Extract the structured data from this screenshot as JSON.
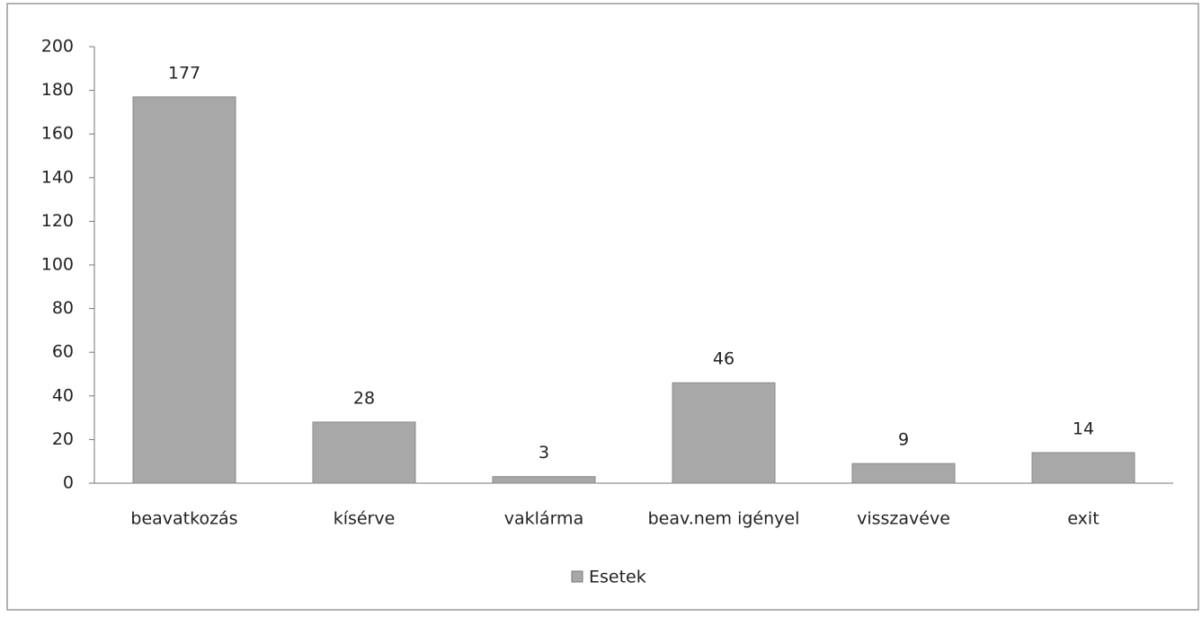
{
  "chart_data": {
    "type": "bar",
    "categories": [
      "beavatkozás",
      "kísérve",
      "vaklárma",
      "beav.nem igényel",
      "visszavéve",
      "exit"
    ],
    "series": [
      {
        "name": "Esetek",
        "color": "#a8a8a8",
        "values": [
          177,
          28,
          3,
          46,
          9,
          14
        ]
      }
    ],
    "ylim": [
      0,
      200
    ],
    "yticks": [
      0,
      20,
      40,
      60,
      80,
      100,
      120,
      140,
      160,
      180,
      200
    ],
    "legend": "bottom"
  }
}
